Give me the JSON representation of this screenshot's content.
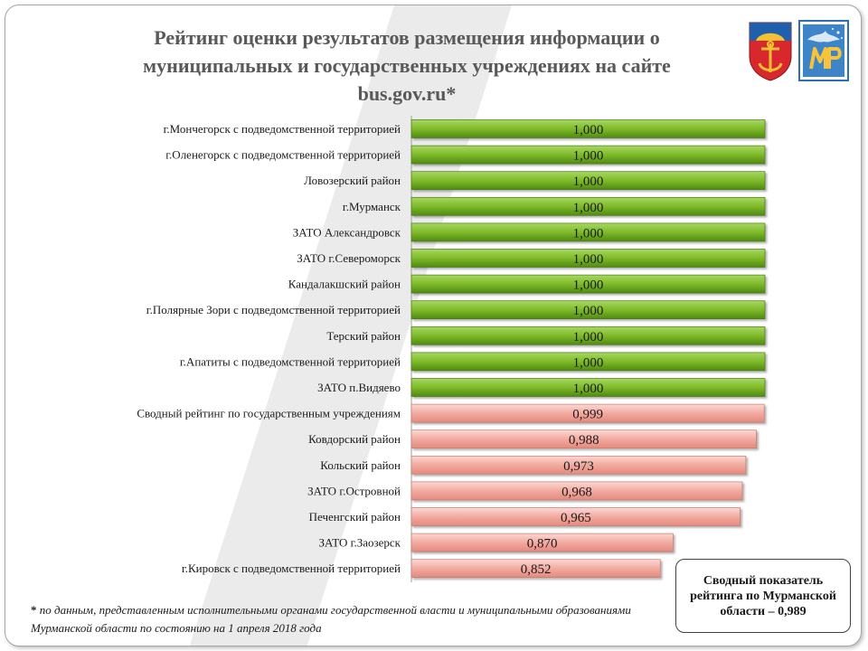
{
  "title": {
    "lines": [
      "Рейтинг оценки результатов  размещения  информации о",
      "муниципальных и государственных учреждениях на сайте",
      "bus.gov.ru*"
    ]
  },
  "colors": {
    "green_bar": "#7fba2a",
    "pink_bar": "#f2aaa0",
    "title_text": "#595959"
  },
  "icons": {
    "left_logo": "murmansk-coat-of-arms-icon",
    "right_logo": "ministry-logo-icon"
  },
  "chart_data": {
    "type": "bar",
    "orientation": "horizontal",
    "categories": [
      "г.Мончегорск с подведомственной территорией",
      "г.Оленегорск с подведомственной территорией",
      "Ловозерский район",
      "г.Мурманск",
      "ЗАТО Александровск",
      "ЗАТО г.Североморск",
      "Кандалакшский  район",
      "г.Полярные Зори с подведомственной территорией",
      "Терский район",
      "г.Апатиты с подведомственной территорией",
      "ЗАТО п.Видяево",
      "Сводный рейтинг по государственным учреждениям",
      "Ковдорский район",
      "Кольский район",
      "ЗАТО г.Островной",
      "Печенгский район",
      "ЗАТО г.Заозерск",
      "г.Кировск с подведомственной территорией"
    ],
    "values": [
      1.0,
      1.0,
      1.0,
      1.0,
      1.0,
      1.0,
      1.0,
      1.0,
      1.0,
      1.0,
      1.0,
      0.999,
      0.988,
      0.973,
      0.968,
      0.965,
      0.87,
      0.852
    ],
    "value_labels": [
      "1,000",
      "1,000",
      "1,000",
      "1,000",
      "1,000",
      "1,000",
      "1,000",
      "1,000",
      "1,000",
      "1,000",
      "1,000",
      "0,999",
      "0,988",
      "0,973",
      "0,968",
      "0,965",
      "0,870",
      "0,852"
    ],
    "bar_groups": [
      "green",
      "green",
      "green",
      "green",
      "green",
      "green",
      "green",
      "green",
      "green",
      "green",
      "green",
      "pink",
      "pink",
      "pink",
      "pink",
      "pink",
      "pink",
      "pink"
    ],
    "xlim": [
      0.5,
      1.0
    ],
    "grid": false,
    "legend": "none"
  },
  "summary": {
    "text": "Сводный показатель рейтинга по Мурманской области – 0,989"
  },
  "footnote": {
    "marker": "*",
    "text": " по данным, представленным  исполнительными органами государственной власти и муниципальными образованиями Мурманской  области по состоянию на 1 апреля 2018 года"
  }
}
